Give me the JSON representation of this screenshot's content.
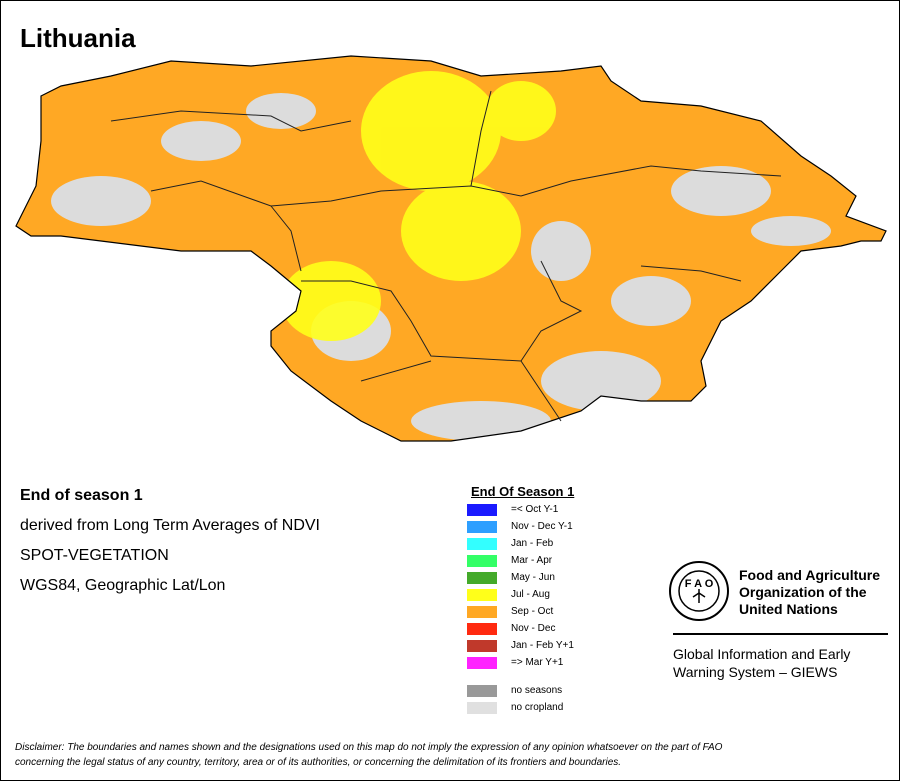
{
  "header": {
    "title": "Lithuania"
  },
  "info": [
    "End of season 1",
    "derived from Long Term Averages of NDVI",
    "SPOT-VEGETATION",
    "WGS84, Geographic Lat/Lon"
  ],
  "legend": {
    "title": "End Of Season 1",
    "items": [
      {
        "label": "=< Oct Y-1",
        "color": "#1a1aff"
      },
      {
        "label": "Nov - Dec Y-1",
        "color": "#2e9fff"
      },
      {
        "label": "Jan - Feb",
        "color": "#33ffff"
      },
      {
        "label": "Mar - Apr",
        "color": "#33ff66"
      },
      {
        "label": "May - Jun",
        "color": "#44aa2a"
      },
      {
        "label": "Jul - Aug",
        "color": "#ffff1a"
      },
      {
        "label": "Sep - Oct",
        "color": "#ffa824"
      },
      {
        "label": "Nov - Dec",
        "color": "#ff2a10"
      },
      {
        "label": "Jan - Feb Y+1",
        "color": "#c0392b"
      },
      {
        "label": "=> Mar Y+1",
        "color": "#ff22ff"
      }
    ],
    "extra": [
      {
        "label": "no seasons",
        "color": "#999999"
      },
      {
        "label": "no cropland",
        "color": "#e0e0e0"
      }
    ]
  },
  "organization": {
    "name": [
      "Food and Agriculture",
      "Organization of the",
      "United Nations"
    ],
    "system": [
      "Global Information and Early",
      "Warning System – GIEWS"
    ]
  },
  "disclaimer": [
    "Disclaimer: The boundaries and names shown and the designations used on this map do not imply the expression of any opinion whatsoever on the part of FAO",
    "concerning the legal status of any country, territory, area or of its authorities, or concerning the delimitation of its frontiers and boundaries."
  ]
}
